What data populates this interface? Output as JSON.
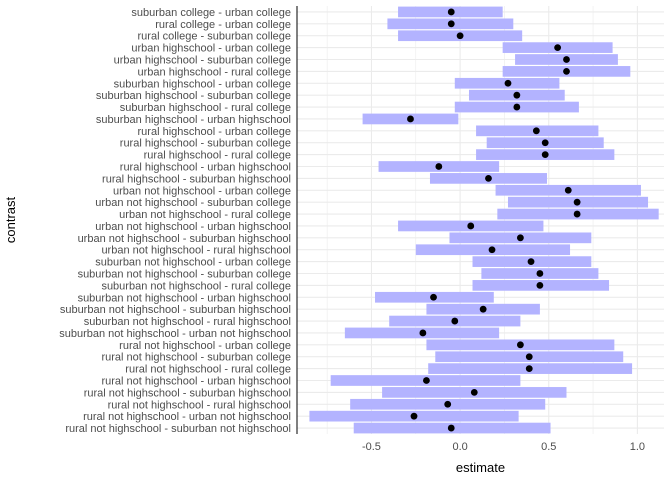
{
  "chart_data": {
    "type": "interval",
    "xlabel": "estimate",
    "ylabel": "contrast",
    "xlim": [
      -0.92,
      1.15
    ],
    "xticks": [
      -0.5,
      0.0,
      0.5,
      1.0
    ],
    "xtick_labels": [
      "-0.5",
      "0.0",
      "0.5",
      "1.0"
    ],
    "grid": true,
    "colors": {
      "interval": "#b3b3ff",
      "point": "#000000",
      "grid": "#ebebeb",
      "axis": "#000000"
    },
    "rows": [
      {
        "contrast": "suburban college - urban college",
        "estimate": -0.05,
        "low": -0.35,
        "high": 0.24
      },
      {
        "contrast": "rural college - urban college",
        "estimate": -0.05,
        "low": -0.41,
        "high": 0.3
      },
      {
        "contrast": "rural college - suburban college",
        "estimate": 0.0,
        "low": -0.35,
        "high": 0.35
      },
      {
        "contrast": "urban highschool - urban college",
        "estimate": 0.55,
        "low": 0.24,
        "high": 0.86
      },
      {
        "contrast": "urban highschool - suburban college",
        "estimate": 0.6,
        "low": 0.31,
        "high": 0.89
      },
      {
        "contrast": "urban highschool - rural college",
        "estimate": 0.6,
        "low": 0.24,
        "high": 0.96
      },
      {
        "contrast": "suburban highschool - urban college",
        "estimate": 0.27,
        "low": -0.03,
        "high": 0.56
      },
      {
        "contrast": "suburban highschool - suburban college",
        "estimate": 0.32,
        "low": 0.05,
        "high": 0.59
      },
      {
        "contrast": "suburban highschool - rural college",
        "estimate": 0.32,
        "low": -0.03,
        "high": 0.67
      },
      {
        "contrast": "suburban highschool - urban highschool",
        "estimate": -0.28,
        "low": -0.55,
        "high": -0.01
      },
      {
        "contrast": "rural highschool - urban college",
        "estimate": 0.43,
        "low": 0.09,
        "high": 0.78
      },
      {
        "contrast": "rural highschool - suburban college",
        "estimate": 0.48,
        "low": 0.15,
        "high": 0.81
      },
      {
        "contrast": "rural highschool - rural college",
        "estimate": 0.48,
        "low": 0.09,
        "high": 0.87
      },
      {
        "contrast": "rural highschool - urban highschool",
        "estimate": -0.12,
        "low": -0.46,
        "high": 0.22
      },
      {
        "contrast": "rural highschool - suburban highschool",
        "estimate": 0.16,
        "low": -0.17,
        "high": 0.49
      },
      {
        "contrast": "urban not highschool - urban college",
        "estimate": 0.61,
        "low": 0.2,
        "high": 1.02
      },
      {
        "contrast": "urban not highschool - suburban college",
        "estimate": 0.66,
        "low": 0.27,
        "high": 1.06
      },
      {
        "contrast": "urban not highschool - rural college",
        "estimate": 0.66,
        "low": 0.21,
        "high": 1.12
      },
      {
        "contrast": "urban not highschool - urban highschool",
        "estimate": 0.06,
        "low": -0.35,
        "high": 0.47
      },
      {
        "contrast": "urban not highschool - suburban highschool",
        "estimate": 0.34,
        "low": -0.06,
        "high": 0.74
      },
      {
        "contrast": "urban not highschool - rural highschool",
        "estimate": 0.18,
        "low": -0.25,
        "high": 0.62
      },
      {
        "contrast": "suburban not highschool - urban college",
        "estimate": 0.4,
        "low": 0.07,
        "high": 0.74
      },
      {
        "contrast": "suburban not highschool - suburban college",
        "estimate": 0.45,
        "low": 0.12,
        "high": 0.78
      },
      {
        "contrast": "suburban not highschool - rural college",
        "estimate": 0.45,
        "low": 0.07,
        "high": 0.84
      },
      {
        "contrast": "suburban not highschool - urban highschool",
        "estimate": -0.15,
        "low": -0.48,
        "high": 0.19
      },
      {
        "contrast": "suburban not highschool - suburban highschool",
        "estimate": 0.13,
        "low": -0.19,
        "high": 0.45
      },
      {
        "contrast": "suburban not highschool - rural highschool",
        "estimate": -0.03,
        "low": -0.4,
        "high": 0.34
      },
      {
        "contrast": "suburban not highschool - urban not highschool",
        "estimate": -0.21,
        "low": -0.65,
        "high": 0.22
      },
      {
        "contrast": "rural not highschool - urban college",
        "estimate": 0.34,
        "low": -0.19,
        "high": 0.87
      },
      {
        "contrast": "rural not highschool - suburban college",
        "estimate": 0.39,
        "low": -0.14,
        "high": 0.92
      },
      {
        "contrast": "rural not highschool - rural college",
        "estimate": 0.39,
        "low": -0.18,
        "high": 0.97
      },
      {
        "contrast": "rural not highschool - urban highschool",
        "estimate": -0.19,
        "low": -0.73,
        "high": 0.34
      },
      {
        "contrast": "rural not highschool - suburban highschool",
        "estimate": 0.08,
        "low": -0.44,
        "high": 0.6
      },
      {
        "contrast": "rural not highschool - rural highschool",
        "estimate": -0.07,
        "low": -0.62,
        "high": 0.48
      },
      {
        "contrast": "rural not highschool - urban not highschool",
        "estimate": -0.26,
        "low": -0.85,
        "high": 0.33
      },
      {
        "contrast": "rural not highschool - suburban not highschool",
        "estimate": -0.05,
        "low": -0.6,
        "high": 0.51
      }
    ]
  }
}
